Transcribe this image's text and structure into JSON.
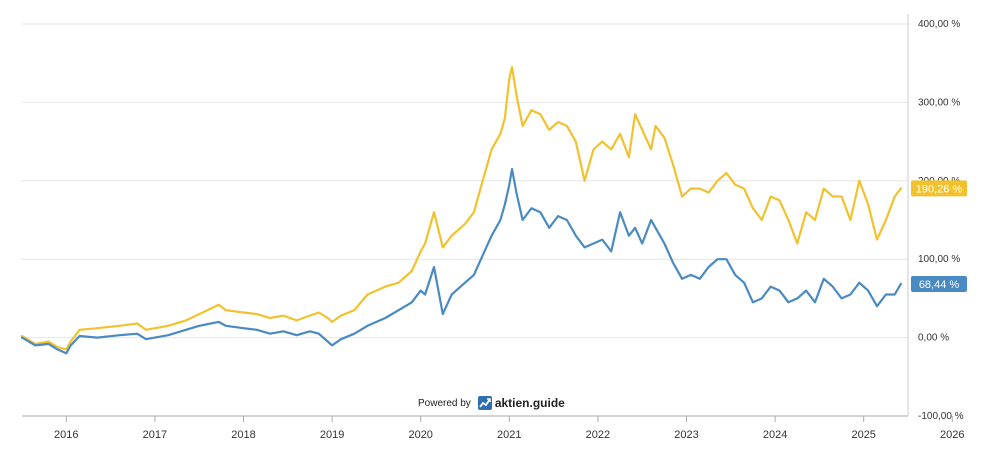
{
  "chart_data": {
    "type": "line",
    "y_unit": "%",
    "ylim": [
      -100,
      400
    ],
    "yticks": [
      "400,00 %",
      "300,00 %",
      "200,00 %",
      "100,00 %",
      "0,00 %",
      "-100,00 %"
    ],
    "yticks_values": [
      400,
      300,
      200,
      100,
      0,
      -100
    ],
    "xlim": [
      2015.5,
      2025.5
    ],
    "xticks": [
      "2016",
      "2017",
      "2018",
      "2019",
      "2020",
      "2021",
      "2022",
      "2023",
      "2024",
      "2025",
      "2026"
    ],
    "xticks_values": [
      2016,
      2017,
      2018,
      2019,
      2020,
      2021,
      2022,
      2023,
      2024,
      2025,
      2026
    ],
    "grid": "horizontal",
    "series": [
      {
        "color": "#f2c12e",
        "last_label": "190,26 %",
        "x": [
          2015.5,
          2015.65,
          2015.8,
          2015.9,
          2016.0,
          2016.05,
          2016.15,
          2016.35,
          2016.6,
          2016.8,
          2016.9,
          2017.0,
          2017.15,
          2017.35,
          2017.5,
          2017.72,
          2017.8,
          2018.0,
          2018.15,
          2018.3,
          2018.45,
          2018.6,
          2018.75,
          2018.85,
          2018.95,
          2019.0,
          2019.1,
          2019.25,
          2019.4,
          2019.6,
          2019.75,
          2019.9,
          2020.0,
          2020.05,
          2020.15,
          2020.25,
          2020.35,
          2020.5,
          2020.6,
          2020.7,
          2020.8,
          2020.9,
          2020.95,
          2021.0,
          2021.03,
          2021.08,
          2021.15,
          2021.25,
          2021.35,
          2021.45,
          2021.55,
          2021.65,
          2021.75,
          2021.85,
          2021.95,
          2022.05,
          2022.15,
          2022.25,
          2022.35,
          2022.42,
          2022.5,
          2022.6,
          2022.65,
          2022.75,
          2022.85,
          2022.95,
          2023.05,
          2023.15,
          2023.25,
          2023.35,
          2023.45,
          2023.55,
          2023.65,
          2023.75,
          2023.85,
          2023.95,
          2024.05,
          2024.15,
          2024.25,
          2024.35,
          2024.45,
          2024.55,
          2024.65,
          2024.75,
          2024.85,
          2024.95,
          2025.05,
          2025.15,
          2025.25,
          2025.35,
          2025.42
        ],
        "y": [
          2,
          -8,
          -5,
          -12,
          -15,
          -5,
          10,
          12,
          15,
          18,
          10,
          12,
          15,
          22,
          30,
          42,
          35,
          32,
          30,
          25,
          28,
          22,
          28,
          32,
          25,
          20,
          28,
          35,
          55,
          65,
          70,
          85,
          110,
          120,
          160,
          115,
          130,
          145,
          160,
          200,
          240,
          260,
          280,
          330,
          345,
          310,
          270,
          290,
          285,
          265,
          275,
          270,
          250,
          200,
          240,
          250,
          240,
          260,
          230,
          285,
          265,
          240,
          270,
          255,
          220,
          180,
          190,
          190,
          185,
          200,
          210,
          195,
          190,
          165,
          150,
          180,
          175,
          150,
          120,
          160,
          150,
          190,
          180,
          180,
          150,
          200,
          170,
          125,
          150,
          180,
          190.26
        ]
      },
      {
        "color": "#4a8ac2",
        "last_label": "68,44 %",
        "x": [
          2015.5,
          2015.65,
          2015.8,
          2015.9,
          2016.0,
          2016.05,
          2016.15,
          2016.35,
          2016.6,
          2016.8,
          2016.9,
          2017.0,
          2017.15,
          2017.35,
          2017.5,
          2017.72,
          2017.8,
          2018.0,
          2018.15,
          2018.3,
          2018.45,
          2018.6,
          2018.75,
          2018.85,
          2018.95,
          2019.0,
          2019.1,
          2019.25,
          2019.4,
          2019.6,
          2019.75,
          2019.9,
          2020.0,
          2020.05,
          2020.15,
          2020.25,
          2020.35,
          2020.5,
          2020.6,
          2020.7,
          2020.8,
          2020.9,
          2020.95,
          2021.0,
          2021.03,
          2021.08,
          2021.15,
          2021.25,
          2021.35,
          2021.45,
          2021.55,
          2021.65,
          2021.75,
          2021.85,
          2021.95,
          2022.05,
          2022.15,
          2022.25,
          2022.35,
          2022.42,
          2022.5,
          2022.6,
          2022.65,
          2022.75,
          2022.85,
          2022.95,
          2023.05,
          2023.15,
          2023.25,
          2023.35,
          2023.45,
          2023.55,
          2023.65,
          2023.75,
          2023.85,
          2023.95,
          2024.05,
          2024.15,
          2024.25,
          2024.35,
          2024.45,
          2024.55,
          2024.65,
          2024.75,
          2024.85,
          2024.95,
          2025.05,
          2025.15,
          2025.25,
          2025.35,
          2025.42
        ],
        "y": [
          0,
          -10,
          -8,
          -15,
          -20,
          -10,
          2,
          0,
          3,
          5,
          -2,
          0,
          3,
          10,
          15,
          20,
          15,
          12,
          10,
          5,
          8,
          3,
          8,
          5,
          -5,
          -10,
          -2,
          5,
          15,
          25,
          35,
          45,
          60,
          55,
          90,
          30,
          55,
          70,
          80,
          105,
          130,
          150,
          170,
          195,
          215,
          185,
          150,
          165,
          160,
          140,
          155,
          150,
          130,
          115,
          120,
          125,
          110,
          160,
          130,
          140,
          120,
          150,
          140,
          120,
          95,
          75,
          80,
          75,
          90,
          100,
          100,
          80,
          70,
          45,
          50,
          65,
          60,
          45,
          50,
          60,
          45,
          75,
          65,
          50,
          55,
          70,
          60,
          40,
          55,
          55,
          68.44
        ]
      }
    ]
  },
  "footer": {
    "powered_by": "Powered by",
    "brand": "aktien.guide"
  }
}
